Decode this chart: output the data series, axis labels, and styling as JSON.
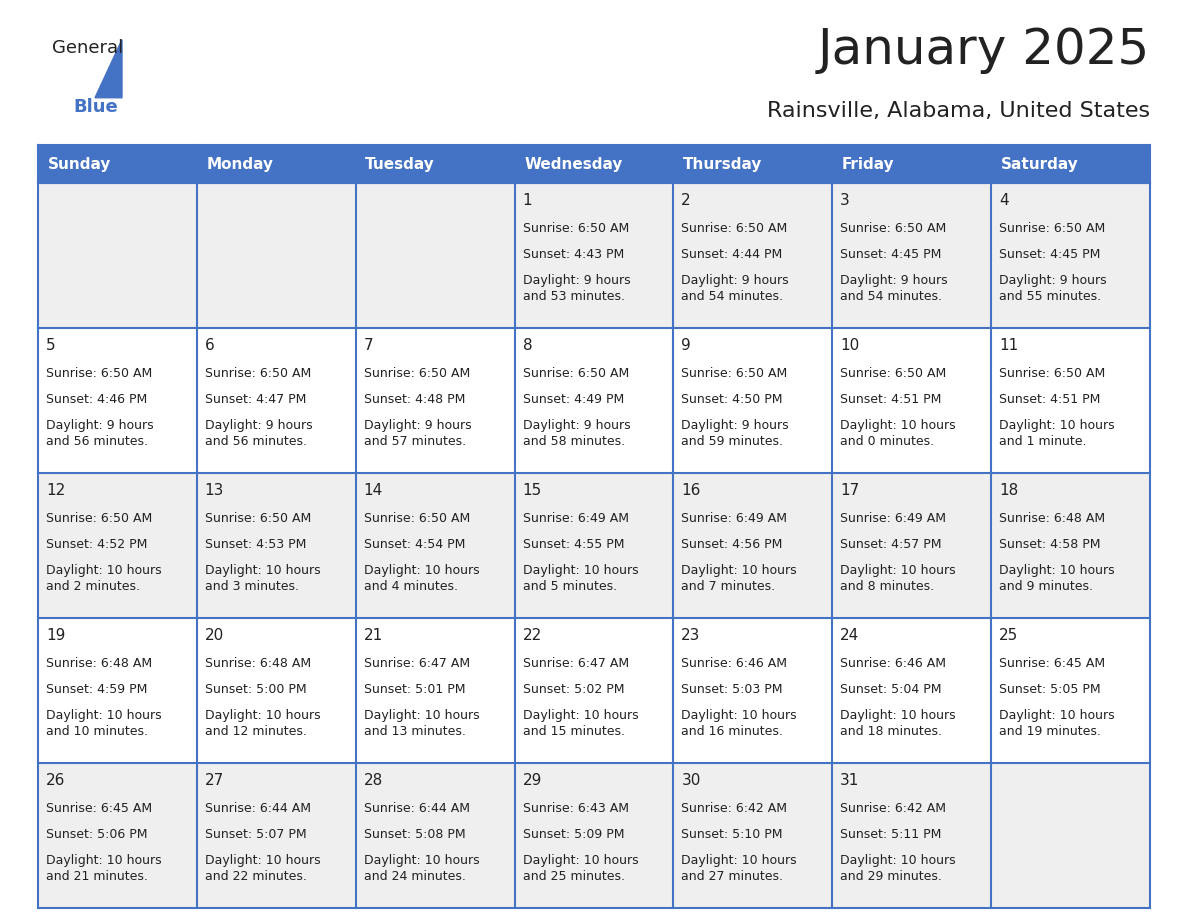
{
  "title": "January 2025",
  "subtitle": "Rainsville, Alabama, United States",
  "header_bg": "#4472C4",
  "header_text_color": "#FFFFFF",
  "day_names": [
    "Sunday",
    "Monday",
    "Tuesday",
    "Wednesday",
    "Thursday",
    "Friday",
    "Saturday"
  ],
  "cell_bg_even": "#EFEFEF",
  "cell_bg_odd": "#FFFFFF",
  "text_color": "#222222",
  "grid_color": "#4472C4",
  "logo_text_color": "#222222",
  "logo_blue_color": "#4472C4",
  "title_fontsize": 36,
  "subtitle_fontsize": 16,
  "header_fontsize": 11,
  "day_num_fontsize": 11,
  "cell_fontsize": 9,
  "calendar": [
    [
      {
        "day": null,
        "sunrise": null,
        "sunset": null,
        "daylight": null
      },
      {
        "day": null,
        "sunrise": null,
        "sunset": null,
        "daylight": null
      },
      {
        "day": null,
        "sunrise": null,
        "sunset": null,
        "daylight": null
      },
      {
        "day": 1,
        "sunrise": "6:50 AM",
        "sunset": "4:43 PM",
        "daylight": "9 hours\nand 53 minutes."
      },
      {
        "day": 2,
        "sunrise": "6:50 AM",
        "sunset": "4:44 PM",
        "daylight": "9 hours\nand 54 minutes."
      },
      {
        "day": 3,
        "sunrise": "6:50 AM",
        "sunset": "4:45 PM",
        "daylight": "9 hours\nand 54 minutes."
      },
      {
        "day": 4,
        "sunrise": "6:50 AM",
        "sunset": "4:45 PM",
        "daylight": "9 hours\nand 55 minutes."
      }
    ],
    [
      {
        "day": 5,
        "sunrise": "6:50 AM",
        "sunset": "4:46 PM",
        "daylight": "9 hours\nand 56 minutes."
      },
      {
        "day": 6,
        "sunrise": "6:50 AM",
        "sunset": "4:47 PM",
        "daylight": "9 hours\nand 56 minutes."
      },
      {
        "day": 7,
        "sunrise": "6:50 AM",
        "sunset": "4:48 PM",
        "daylight": "9 hours\nand 57 minutes."
      },
      {
        "day": 8,
        "sunrise": "6:50 AM",
        "sunset": "4:49 PM",
        "daylight": "9 hours\nand 58 minutes."
      },
      {
        "day": 9,
        "sunrise": "6:50 AM",
        "sunset": "4:50 PM",
        "daylight": "9 hours\nand 59 minutes."
      },
      {
        "day": 10,
        "sunrise": "6:50 AM",
        "sunset": "4:51 PM",
        "daylight": "10 hours\nand 0 minutes."
      },
      {
        "day": 11,
        "sunrise": "6:50 AM",
        "sunset": "4:51 PM",
        "daylight": "10 hours\nand 1 minute."
      }
    ],
    [
      {
        "day": 12,
        "sunrise": "6:50 AM",
        "sunset": "4:52 PM",
        "daylight": "10 hours\nand 2 minutes."
      },
      {
        "day": 13,
        "sunrise": "6:50 AM",
        "sunset": "4:53 PM",
        "daylight": "10 hours\nand 3 minutes."
      },
      {
        "day": 14,
        "sunrise": "6:50 AM",
        "sunset": "4:54 PM",
        "daylight": "10 hours\nand 4 minutes."
      },
      {
        "day": 15,
        "sunrise": "6:49 AM",
        "sunset": "4:55 PM",
        "daylight": "10 hours\nand 5 minutes."
      },
      {
        "day": 16,
        "sunrise": "6:49 AM",
        "sunset": "4:56 PM",
        "daylight": "10 hours\nand 7 minutes."
      },
      {
        "day": 17,
        "sunrise": "6:49 AM",
        "sunset": "4:57 PM",
        "daylight": "10 hours\nand 8 minutes."
      },
      {
        "day": 18,
        "sunrise": "6:48 AM",
        "sunset": "4:58 PM",
        "daylight": "10 hours\nand 9 minutes."
      }
    ],
    [
      {
        "day": 19,
        "sunrise": "6:48 AM",
        "sunset": "4:59 PM",
        "daylight": "10 hours\nand 10 minutes."
      },
      {
        "day": 20,
        "sunrise": "6:48 AM",
        "sunset": "5:00 PM",
        "daylight": "10 hours\nand 12 minutes."
      },
      {
        "day": 21,
        "sunrise": "6:47 AM",
        "sunset": "5:01 PM",
        "daylight": "10 hours\nand 13 minutes."
      },
      {
        "day": 22,
        "sunrise": "6:47 AM",
        "sunset": "5:02 PM",
        "daylight": "10 hours\nand 15 minutes."
      },
      {
        "day": 23,
        "sunrise": "6:46 AM",
        "sunset": "5:03 PM",
        "daylight": "10 hours\nand 16 minutes."
      },
      {
        "day": 24,
        "sunrise": "6:46 AM",
        "sunset": "5:04 PM",
        "daylight": "10 hours\nand 18 minutes."
      },
      {
        "day": 25,
        "sunrise": "6:45 AM",
        "sunset": "5:05 PM",
        "daylight": "10 hours\nand 19 minutes."
      }
    ],
    [
      {
        "day": 26,
        "sunrise": "6:45 AM",
        "sunset": "5:06 PM",
        "daylight": "10 hours\nand 21 minutes."
      },
      {
        "day": 27,
        "sunrise": "6:44 AM",
        "sunset": "5:07 PM",
        "daylight": "10 hours\nand 22 minutes."
      },
      {
        "day": 28,
        "sunrise": "6:44 AM",
        "sunset": "5:08 PM",
        "daylight": "10 hours\nand 24 minutes."
      },
      {
        "day": 29,
        "sunrise": "6:43 AM",
        "sunset": "5:09 PM",
        "daylight": "10 hours\nand 25 minutes."
      },
      {
        "day": 30,
        "sunrise": "6:42 AM",
        "sunset": "5:10 PM",
        "daylight": "10 hours\nand 27 minutes."
      },
      {
        "day": 31,
        "sunrise": "6:42 AM",
        "sunset": "5:11 PM",
        "daylight": "10 hours\nand 29 minutes."
      },
      {
        "day": null,
        "sunrise": null,
        "sunset": null,
        "daylight": null
      }
    ]
  ]
}
